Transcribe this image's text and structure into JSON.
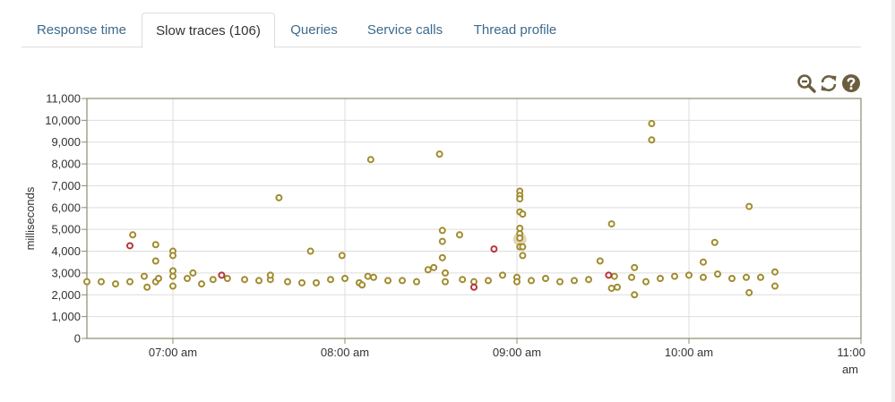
{
  "tabs": [
    {
      "label": "Response time",
      "active": false
    },
    {
      "label": "Slow traces (106)",
      "active": true
    },
    {
      "label": "Queries",
      "active": false
    },
    {
      "label": "Service calls",
      "active": false
    },
    {
      "label": "Thread profile",
      "active": false
    }
  ],
  "toolbar": {
    "icons": [
      "zoom-out-icon",
      "refresh-icon",
      "help-icon"
    ]
  },
  "colors": {
    "tab_link": "#3c6a8e",
    "point_normal": "#a18b2e",
    "point_error": "#b6343a",
    "axis": "#8d8d6e",
    "grid": "#dddddd"
  },
  "chart_data": {
    "type": "scatter",
    "ylabel": "milliseconds",
    "xlabel": "",
    "ylim": [
      0,
      11000
    ],
    "xlim": [
      "06:30 am",
      "11:00 am"
    ],
    "yticks": [
      "0",
      "1,000",
      "2,000",
      "3,000",
      "4,000",
      "5,000",
      "6,000",
      "7,000",
      "8,000",
      "9,000",
      "10,000",
      "11,000"
    ],
    "xticks": [
      "07:00 am",
      "08:00 am",
      "09:00 am",
      "10:00 am",
      "11:00 am"
    ],
    "grid": true,
    "legend": "none",
    "series": [
      {
        "status": "normal",
        "points": [
          [
            "06:30",
            2600
          ],
          [
            "06:35",
            2600
          ],
          [
            "06:40",
            2500
          ],
          [
            "06:45",
            2600
          ],
          [
            "06:46",
            4750
          ],
          [
            "06:50",
            2850
          ],
          [
            "06:51",
            2350
          ],
          [
            "06:54",
            2600
          ],
          [
            "06:54",
            4300
          ],
          [
            "06:54",
            3550
          ],
          [
            "06:55",
            2750
          ],
          [
            "07:00",
            4000
          ],
          [
            "07:00",
            3800
          ],
          [
            "07:00",
            3100
          ],
          [
            "07:00",
            2850
          ],
          [
            "07:00",
            2400
          ],
          [
            "07:05",
            2750
          ],
          [
            "07:07",
            3000
          ],
          [
            "07:10",
            2500
          ],
          [
            "07:14",
            2700
          ],
          [
            "07:19",
            2750
          ],
          [
            "07:25",
            2700
          ],
          [
            "07:30",
            2650
          ],
          [
            "07:34",
            2700
          ],
          [
            "07:34",
            2900
          ],
          [
            "07:37",
            6450
          ],
          [
            "07:40",
            2600
          ],
          [
            "07:45",
            2550
          ],
          [
            "07:48",
            4000
          ],
          [
            "07:50",
            2550
          ],
          [
            "07:55",
            2700
          ],
          [
            "07:59",
            3800
          ],
          [
            "08:00",
            2750
          ],
          [
            "08:05",
            2550
          ],
          [
            "08:06",
            2450
          ],
          [
            "08:08",
            2850
          ],
          [
            "08:09",
            8200
          ],
          [
            "08:10",
            2800
          ],
          [
            "08:15",
            2650
          ],
          [
            "08:20",
            2650
          ],
          [
            "08:25",
            2600
          ],
          [
            "08:29",
            3150
          ],
          [
            "08:31",
            3250
          ],
          [
            "08:33",
            8450
          ],
          [
            "08:34",
            4950
          ],
          [
            "08:34",
            4450
          ],
          [
            "08:34",
            3700
          ],
          [
            "08:35",
            3000
          ],
          [
            "08:35",
            2600
          ],
          [
            "08:40",
            4750
          ],
          [
            "08:41",
            2700
          ],
          [
            "08:45",
            2600
          ],
          [
            "08:50",
            2650
          ],
          [
            "08:55",
            2900
          ],
          [
            "09:00",
            2800
          ],
          [
            "09:00",
            2600
          ],
          [
            "09:01",
            5800
          ],
          [
            "09:01",
            5050
          ],
          [
            "09:01",
            4800
          ],
          [
            "09:01",
            4600
          ],
          [
            "09:01",
            4200
          ],
          [
            "09:01",
            6750
          ],
          [
            "09:01",
            6550
          ],
          [
            "09:01",
            6400
          ],
          [
            "09:02",
            5700
          ],
          [
            "09:02",
            4200
          ],
          [
            "09:02",
            3800
          ],
          [
            "09:05",
            2650
          ],
          [
            "09:10",
            2750
          ],
          [
            "09:15",
            2600
          ],
          [
            "09:20",
            2650
          ],
          [
            "09:25",
            2700
          ],
          [
            "09:29",
            3550
          ],
          [
            "09:33",
            5250
          ],
          [
            "09:33",
            2300
          ],
          [
            "09:34",
            2850
          ],
          [
            "09:35",
            2350
          ],
          [
            "09:40",
            2800
          ],
          [
            "09:41",
            3250
          ],
          [
            "09:41",
            2000
          ],
          [
            "09:45",
            2600
          ],
          [
            "09:47",
            9850
          ],
          [
            "09:47",
            9100
          ],
          [
            "09:50",
            2750
          ],
          [
            "09:55",
            2850
          ],
          [
            "10:00",
            2900
          ],
          [
            "10:05",
            2800
          ],
          [
            "10:05",
            3500
          ],
          [
            "10:09",
            4400
          ],
          [
            "10:10",
            2950
          ],
          [
            "10:15",
            2750
          ],
          [
            "10:20",
            2800
          ],
          [
            "10:21",
            6050
          ],
          [
            "10:21",
            2100
          ],
          [
            "10:25",
            2800
          ],
          [
            "10:30",
            3050
          ],
          [
            "10:30",
            2400
          ]
        ]
      },
      {
        "status": "error",
        "points": [
          [
            "06:45",
            4250
          ],
          [
            "07:17",
            2900
          ],
          [
            "08:45",
            2350
          ],
          [
            "08:52",
            4100
          ],
          [
            "09:32",
            2900
          ]
        ]
      }
    ],
    "highlight": [
      "09:01",
      4550
    ]
  }
}
